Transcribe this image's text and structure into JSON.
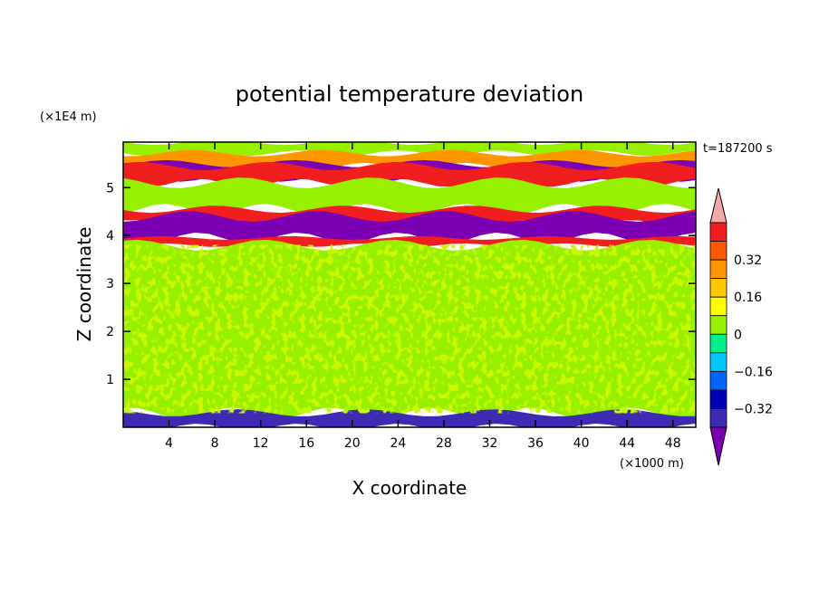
{
  "chart_data": {
    "type": "heatmap",
    "title": "potential temperature deviation",
    "time_label": "t=187200 s",
    "xlabel": "X coordinate",
    "ylabel": "Z coordinate",
    "x_unit": "(×1000 m)",
    "y_unit": "(×1E4 m)",
    "xlim": [
      0,
      50
    ],
    "ylim": [
      0,
      5.95
    ],
    "x_ticks": [
      "4",
      "8",
      "12",
      "16",
      "20",
      "24",
      "28",
      "32",
      "36",
      "40",
      "44",
      "48"
    ],
    "y_ticks": [
      "1",
      "2",
      "3",
      "4",
      "5"
    ],
    "colorbar": {
      "tick_labels": [
        "0.32",
        "0.16",
        "0",
        "-0.16",
        "-0.32"
      ],
      "levels": [
        -0.4,
        -0.32,
        -0.24,
        -0.16,
        -0.08,
        0,
        0.08,
        0.16,
        0.24,
        0.32,
        0.4
      ],
      "colors": [
        "#7b00b4",
        "#3d2bb4",
        "#0000b4",
        "#0064ff",
        "#00c8ff",
        "#00f08a",
        "#96f000",
        "#ffff00",
        "#ffc800",
        "#ff9600",
        "#ff5a00",
        "#f01e1e",
        "#f4a8a8"
      ]
    },
    "bands": [
      {
        "z0": 5.72,
        "z1": 5.95,
        "value": 0.04
      },
      {
        "z0": 5.45,
        "z1": 5.72,
        "value": 0.24
      },
      {
        "z0": 5.2,
        "z1": 5.5,
        "value": -0.44
      },
      {
        "z0": 5.1,
        "z1": 5.45,
        "value": 0.44
      },
      {
        "z0": 4.55,
        "z1": 5.1,
        "value": 0.04
      },
      {
        "z0": 4.25,
        "z1": 4.55,
        "value": 0.44
      },
      {
        "z0": 3.95,
        "z1": 4.4,
        "value": -0.44
      },
      {
        "z0": 3.8,
        "z1": 3.95,
        "value": 0.44
      },
      {
        "z0": 0.3,
        "z1": 3.8,
        "value": 0.04
      },
      {
        "z0": 0.0,
        "z1": 0.3,
        "value": -0.36
      }
    ]
  }
}
